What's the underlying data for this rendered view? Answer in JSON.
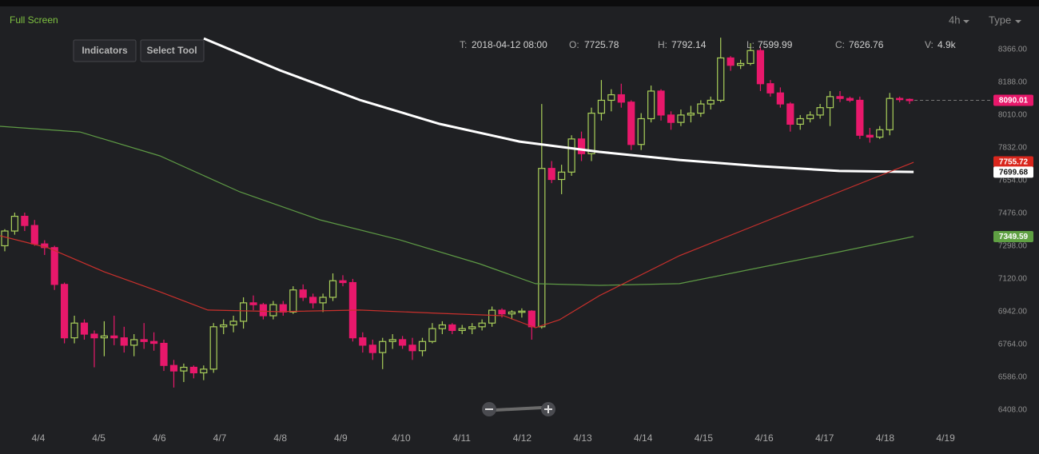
{
  "ui": {
    "full_screen": "Full Screen",
    "interval": "4h",
    "type_menu": "Type",
    "buttons": [
      "Indicators",
      "Select Tool"
    ],
    "ohlc_info": [
      {
        "label": "T:",
        "value": "2018-04-12 08:00"
      },
      {
        "label": "O:",
        "value": 7725.78
      },
      {
        "label": "H:",
        "value": 7792.14
      },
      {
        "label": "L:",
        "value": 7599.99
      },
      {
        "label": "C:",
        "value": 7626.76
      },
      {
        "label": "V:",
        "value": "4.9k"
      }
    ]
  },
  "chart_data": {
    "type": "candlestick",
    "up_color": "#a9cf5a",
    "down_color": "#e8186b",
    "grid": false,
    "xlim": [
      3.366,
      19.752
    ],
    "ylim": [
      6334,
      8461
    ],
    "xticks": [
      {
        "value": 4,
        "label": "4/4"
      },
      {
        "value": 5,
        "label": "4/5"
      },
      {
        "value": 6,
        "label": "4/6"
      },
      {
        "value": 7,
        "label": "4/7"
      },
      {
        "value": 8,
        "label": "4/8"
      },
      {
        "value": 9,
        "label": "4/9"
      },
      {
        "value": 10,
        "label": "4/10"
      },
      {
        "value": 11,
        "label": "4/11"
      },
      {
        "value": 12,
        "label": "4/12"
      },
      {
        "value": 13,
        "label": "4/13"
      },
      {
        "value": 14,
        "label": "4/14"
      },
      {
        "value": 15,
        "label": "4/15"
      },
      {
        "value": 16,
        "label": "4/16"
      },
      {
        "value": 17,
        "label": "4/17"
      },
      {
        "value": 18,
        "label": "4/18"
      },
      {
        "value": 19,
        "label": "4/19"
      }
    ],
    "yticks": [
      {
        "value": 8366,
        "label": "8366.00"
      },
      {
        "value": 8188,
        "label": "8188.00"
      },
      {
        "value": 8010,
        "label": "8010.00"
      },
      {
        "value": 7832,
        "label": "7832.00"
      },
      {
        "value": 7654,
        "label": "7654.00"
      },
      {
        "value": 7476,
        "label": "7476.00"
      },
      {
        "value": 7298,
        "label": "7298.00"
      },
      {
        "value": 7120,
        "label": "7120.00"
      },
      {
        "value": 6942,
        "label": "6942.00"
      },
      {
        "value": 6764,
        "label": "6764.00"
      },
      {
        "value": 6586,
        "label": "6586.00"
      },
      {
        "value": 6408,
        "label": "6408.00"
      }
    ],
    "x": [
      3.445,
      3.609,
      3.774,
      3.938,
      4.103,
      4.267,
      4.431,
      4.596,
      4.76,
      4.925,
      5.089,
      5.253,
      5.418,
      5.582,
      5.747,
      5.911,
      6.075,
      6.24,
      6.404,
      6.569,
      6.733,
      6.897,
      7.062,
      7.226,
      7.391,
      7.555,
      7.719,
      7.884,
      8.048,
      8.213,
      8.377,
      8.541,
      8.706,
      8.87,
      9.035,
      9.199,
      9.363,
      9.528,
      9.692,
      9.857,
      10.021,
      10.185,
      10.35,
      10.514,
      10.679,
      10.843,
      11.007,
      11.172,
      11.336,
      11.501,
      11.665,
      11.829,
      11.994,
      12.158,
      12.323,
      12.487,
      12.651,
      12.816,
      12.98,
      13.145,
      13.309,
      13.473,
      13.638,
      13.802,
      13.967,
      14.131,
      14.295,
      14.46,
      14.624,
      14.789,
      14.953,
      15.117,
      15.282,
      15.446,
      15.611,
      15.775,
      15.939,
      16.104,
      16.268,
      16.433,
      16.597,
      16.761,
      16.926,
      17.09,
      17.255,
      17.419,
      17.583,
      17.748,
      17.912,
      18.077,
      18.241,
      18.405
    ],
    "open": [
      7300,
      7380,
      7460,
      7410,
      7310,
      7290,
      7090,
      6800,
      6880,
      6820,
      6800,
      6810,
      6800,
      6760,
      6790,
      6780,
      6770,
      6650,
      6620,
      6640,
      6610,
      6630,
      6860,
      6870,
      6890,
      6990,
      6980,
      6920,
      6980,
      6940,
      7060,
      7020,
      6990,
      7020,
      7110,
      7100,
      6800,
      6760,
      6720,
      6780,
      6790,
      6760,
      6730,
      6780,
      6850,
      6870,
      6840,
      6850,
      6860,
      6880,
      6950,
      6930,
      6940,
      6945,
      6860,
      7720,
      7660,
      7700,
      7880,
      7800,
      8020,
      8090,
      8120,
      8080,
      7850,
      7990,
      8140,
      8010,
      7970,
      8010,
      8020,
      8070,
      8090,
      8320,
      8280,
      8290,
      8360,
      8180,
      8130,
      8070,
      7960,
      7990,
      8010,
      8050,
      8110,
      8100,
      8090,
      7900,
      7890,
      7930,
      8100,
      8095
    ],
    "high": [
      7390,
      7480,
      7480,
      7440,
      7330,
      7300,
      7100,
      6920,
      6900,
      6840,
      6890,
      6920,
      6860,
      6820,
      6880,
      6830,
      6790,
      6680,
      6660,
      6650,
      6650,
      6880,
      6900,
      6920,
      7020,
      7030,
      6990,
      7000,
      7000,
      7080,
      7090,
      7040,
      7040,
      7150,
      7140,
      7120,
      6830,
      6790,
      6800,
      6820,
      6810,
      6800,
      6800,
      6880,
      6890,
      6880,
      6870,
      6880,
      6900,
      6970,
      6960,
      6950,
      6960,
      6950,
      8070,
      7760,
      7740,
      7900,
      7920,
      8050,
      8200,
      8150,
      8180,
      8090,
      8020,
      8170,
      8150,
      8030,
      8040,
      8060,
      8090,
      8110,
      8430,
      8330,
      8310,
      8400,
      8380,
      8200,
      8160,
      8080,
      8010,
      8030,
      8070,
      8140,
      8140,
      8110,
      8110,
      7940,
      7950,
      8130,
      8110,
      8100
    ],
    "low": [
      7270,
      7360,
      7380,
      7300,
      7250,
      7060,
      6770,
      6770,
      6790,
      6640,
      6700,
      6760,
      6720,
      6700,
      6740,
      6730,
      6620,
      6530,
      6560,
      6580,
      6570,
      6610,
      6820,
      6830,
      6850,
      6950,
      6900,
      6900,
      6920,
      6930,
      7000,
      6960,
      6940,
      7000,
      7080,
      6780,
      6720,
      6680,
      6630,
      6740,
      6740,
      6680,
      6700,
      6770,
      6820,
      6820,
      6820,
      6820,
      6840,
      6860,
      6910,
      6900,
      6910,
      6790,
      6850,
      7640,
      7580,
      7680,
      7760,
      7760,
      7980,
      8030,
      8050,
      7820,
      7820,
      7970,
      7980,
      7930,
      7950,
      7970,
      8000,
      8040,
      8080,
      8250,
      8260,
      8280,
      8140,
      8110,
      8050,
      7920,
      7930,
      7970,
      7990,
      7950,
      8080,
      8080,
      7880,
      7860,
      7880,
      7900,
      8080,
      8070
    ],
    "close": [
      7380,
      7460,
      7410,
      7310,
      7290,
      7090,
      6800,
      6880,
      6820,
      6800,
      6810,
      6800,
      6760,
      6790,
      6780,
      6770,
      6650,
      6620,
      6640,
      6610,
      6630,
      6860,
      6870,
      6890,
      6990,
      6980,
      6920,
      6980,
      6940,
      7060,
      7020,
      6990,
      7020,
      7110,
      7100,
      6800,
      6760,
      6720,
      6780,
      6790,
      6760,
      6730,
      6780,
      6850,
      6870,
      6840,
      6850,
      6860,
      6880,
      6950,
      6930,
      6940,
      6945,
      6860,
      7720,
      7660,
      7700,
      7880,
      7800,
      8020,
      8090,
      8120,
      8080,
      7850,
      7990,
      8140,
      8010,
      7970,
      8010,
      8020,
      8070,
      8090,
      8320,
      8280,
      8290,
      8360,
      8180,
      8130,
      8070,
      7960,
      7990,
      8010,
      8050,
      8110,
      8100,
      8090,
      7900,
      7890,
      7930,
      8100,
      8095,
      8090
    ],
    "lines": [
      {
        "color": "#ffffff",
        "width": 3,
        "x": [
          6.736,
          7.991,
          9.312,
          10.634,
          11.955,
          13.277,
          14.599,
          15.92,
          17.242,
          18.471
        ],
        "values": [
          8426,
          8253,
          8092,
          7962,
          7866,
          7810,
          7766,
          7732,
          7706,
          7701
        ]
      },
      {
        "color": "#5e9a45",
        "width": 1.2,
        "x": [
          3.366,
          4.687,
          6.009,
          7.33,
          8.652,
          9.973,
          11.295,
          12.22,
          13.277,
          14.599,
          15.92,
          17.242,
          18.471
        ],
        "values": [
          7949,
          7918,
          7788,
          7593,
          7441,
          7332,
          7202,
          7094,
          7085,
          7094,
          7181,
          7267,
          7350
        ]
      },
      {
        "color": "#c9302c",
        "width": 1.2,
        "x": [
          3.366,
          4.159,
          5.084,
          6.009,
          6.802,
          7.991,
          9.312,
          10.634,
          11.691,
          12.22,
          12.616,
          13.277,
          14.599,
          15.92,
          17.242,
          18.471
        ],
        "values": [
          7354,
          7289,
          7159,
          7050,
          6951,
          6942,
          6951,
          6933,
          6920,
          6855,
          6898,
          7029,
          7246,
          7419,
          7593,
          7753
        ]
      }
    ],
    "price_tags": [
      {
        "value": 8090.01,
        "color": "#e8186b"
      },
      {
        "value": 7755.72,
        "color": "#d9261c"
      },
      {
        "value": 7699.68,
        "color": "#ffffff"
      },
      {
        "value": 7349.59,
        "color": "#5fa043"
      }
    ]
  }
}
